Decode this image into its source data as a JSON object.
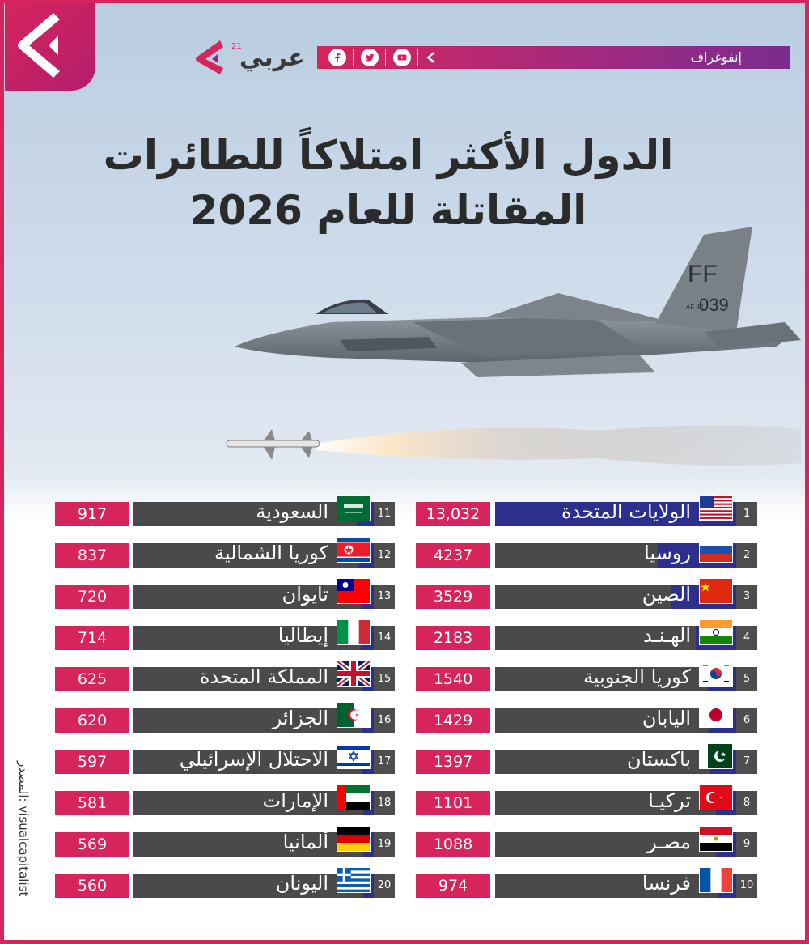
{
  "header": {
    "brand_name": "عربي",
    "brand_sup": "21",
    "section_label": "إنفوغراف",
    "social_icons": [
      "arrow-logo-icon",
      "youtube-icon",
      "twitter-icon",
      "facebook-icon"
    ]
  },
  "title_line1": "الدول الأكثر امتلاكاً للطائرات",
  "title_line2": "المقاتلة للعام 2026",
  "jet_markings": {
    "tail": "FF",
    "serial": "039",
    "small": "AF 82"
  },
  "source": "المصدر: visualcapitalist",
  "colors": {
    "brand": "#d6245c",
    "bar": "#4a4a4a",
    "bar_fill": "#2c2f8c",
    "value_box": "#d6245c"
  },
  "chart_data": {
    "type": "bar",
    "unit": "",
    "max_value": 13032,
    "items": [
      {
        "rank": "1",
        "country": "الولايات المتحدة",
        "value_label": "13,032",
        "value": 13032,
        "flag": "us-flag"
      },
      {
        "rank": "2",
        "country": "روسيا",
        "value_label": "4237",
        "value": 4237,
        "flag": "russia-flag"
      },
      {
        "rank": "3",
        "country": "الصين",
        "value_label": "3529",
        "value": 3529,
        "flag": "china-flag"
      },
      {
        "rank": "4",
        "country": "الهـنـد",
        "value_label": "2183",
        "value": 2183,
        "flag": "india-flag"
      },
      {
        "rank": "5",
        "country": "كوريا الجنوبية",
        "value_label": "1540",
        "value": 1540,
        "flag": "south-korea-flag"
      },
      {
        "rank": "6",
        "country": "اليابان",
        "value_label": "1429",
        "value": 1429,
        "flag": "japan-flag"
      },
      {
        "rank": "7",
        "country": "باكستان",
        "value_label": "1397",
        "value": 1397,
        "flag": "pakistan-flag"
      },
      {
        "rank": "8",
        "country": "تركيـا",
        "value_label": "1101",
        "value": 1101,
        "flag": "turkey-flag"
      },
      {
        "rank": "9",
        "country": "مصـر",
        "value_label": "1088",
        "value": 1088,
        "flag": "egypt-flag"
      },
      {
        "rank": "10",
        "country": "فرنسا",
        "value_label": "974",
        "value": 974,
        "flag": "france-flag"
      },
      {
        "rank": "11",
        "country": "السعودية",
        "value_label": "917",
        "value": 917,
        "flag": "saudi-flag"
      },
      {
        "rank": "12",
        "country": "كوريا الشمالية",
        "value_label": "837",
        "value": 837,
        "flag": "north-korea-flag"
      },
      {
        "rank": "13",
        "country": "تايوان",
        "value_label": "720",
        "value": 720,
        "flag": "taiwan-flag"
      },
      {
        "rank": "14",
        "country": "إيطاليا",
        "value_label": "714",
        "value": 714,
        "flag": "italy-flag"
      },
      {
        "rank": "15",
        "country": "المملكة المتحدة",
        "value_label": "625",
        "value": 625,
        "flag": "uk-flag"
      },
      {
        "rank": "16",
        "country": "الجزائر",
        "value_label": "620",
        "value": 620,
        "flag": "algeria-flag"
      },
      {
        "rank": "17",
        "country": "الاحتلال الإسرائيلي",
        "value_label": "597",
        "value": 597,
        "flag": "israel-flag"
      },
      {
        "rank": "18",
        "country": "الإمارات",
        "value_label": "581",
        "value": 581,
        "flag": "uae-flag"
      },
      {
        "rank": "19",
        "country": "ألمانيا",
        "value_label": "569",
        "value": 569,
        "flag": "germany-flag"
      },
      {
        "rank": "20",
        "country": "اليونان",
        "value_label": "560",
        "value": 560,
        "flag": "greece-flag"
      }
    ]
  }
}
